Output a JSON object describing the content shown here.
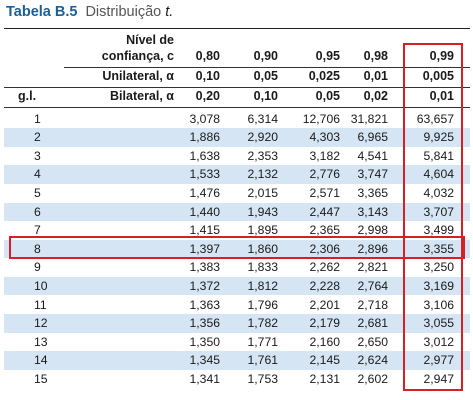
{
  "caption": {
    "tag": "Tabela B.5",
    "name": "Distribuição",
    "var": "t."
  },
  "header": {
    "confidence_label_1": "Nível de",
    "confidence_label_2": "confiança, c",
    "one_tailed_label": "Unilateral, α",
    "two_tailed_label": "Bilateral, α",
    "gl_label": "g.l.",
    "confidence": [
      "0,80",
      "0,90",
      "0,95",
      "0,98",
      "0,99"
    ],
    "one_tailed": [
      "0,10",
      "0,05",
      "0,025",
      "0,01",
      "0,005"
    ],
    "two_tailed": [
      "0,20",
      "0,10",
      "0,05",
      "0,02",
      "0,01"
    ]
  },
  "rows": [
    {
      "gl": "1",
      "values": [
        "3,078",
        "6,314",
        "12,706",
        "31,821",
        "63,657"
      ]
    },
    {
      "gl": "2",
      "values": [
        "1,886",
        "2,920",
        "4,303",
        "6,965",
        "9,925"
      ]
    },
    {
      "gl": "3",
      "values": [
        "1,638",
        "2,353",
        "3,182",
        "4,541",
        "5,841"
      ]
    },
    {
      "gl": "4",
      "values": [
        "1,533",
        "2,132",
        "2,776",
        "3,747",
        "4,604"
      ]
    },
    {
      "gl": "5",
      "values": [
        "1,476",
        "2,015",
        "2,571",
        "3,365",
        "4,032"
      ]
    },
    {
      "gl": "6",
      "values": [
        "1,440",
        "1,943",
        "2,447",
        "3,143",
        "3,707"
      ]
    },
    {
      "gl": "7",
      "values": [
        "1,415",
        "1,895",
        "2,365",
        "2,998",
        "3,499"
      ]
    },
    {
      "gl": "8",
      "values": [
        "1,397",
        "1,860",
        "2,306",
        "2,896",
        "3,355"
      ]
    },
    {
      "gl": "9",
      "values": [
        "1,383",
        "1,833",
        "2,262",
        "2,821",
        "3,250"
      ]
    },
    {
      "gl": "10",
      "values": [
        "1,372",
        "1,812",
        "2,228",
        "2,764",
        "3,169"
      ]
    },
    {
      "gl": "11",
      "values": [
        "1,363",
        "1,796",
        "2,201",
        "2,718",
        "3,106"
      ]
    },
    {
      "gl": "12",
      "values": [
        "1,356",
        "1,782",
        "2,179",
        "2,681",
        "3,055"
      ]
    },
    {
      "gl": "13",
      "values": [
        "1,350",
        "1,771",
        "2,160",
        "2,650",
        "3,012"
      ]
    },
    {
      "gl": "14",
      "values": [
        "1,345",
        "1,761",
        "2,145",
        "2,624",
        "2,977"
      ]
    },
    {
      "gl": "15",
      "values": [
        "1,341",
        "1,753",
        "2,131",
        "2,602",
        "2,947"
      ]
    }
  ],
  "highlight": {
    "row_gl": "8",
    "column_confidence": "0,99",
    "color": "#d81f26"
  },
  "colors": {
    "shade": "#d5e5f4",
    "caption_tag": "#1c5f93"
  }
}
